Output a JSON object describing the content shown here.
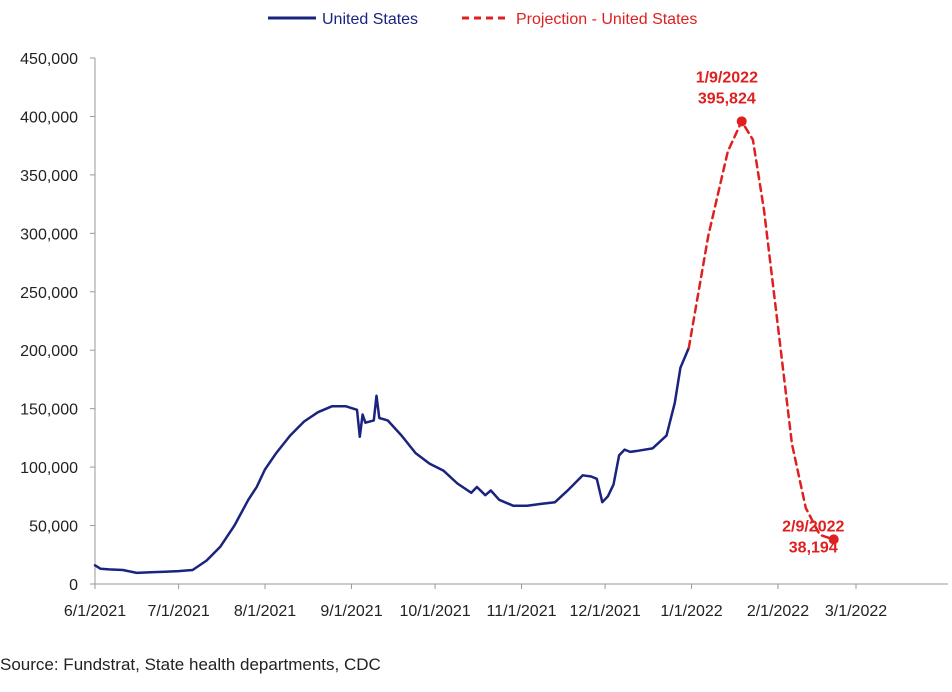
{
  "chart_data": {
    "type": "line",
    "title": "",
    "xlabel": "",
    "ylabel": "",
    "ylim": [
      0,
      450000
    ],
    "yticks": [
      "0",
      "50,000",
      "100,000",
      "150,000",
      "200,000",
      "250,000",
      "300,000",
      "350,000",
      "400,000",
      "450,000"
    ],
    "ytick_values": [
      0,
      50000,
      100000,
      150000,
      200000,
      250000,
      300000,
      350000,
      400000,
      450000
    ],
    "xticks": [
      "6/1/2021",
      "7/1/2021",
      "8/1/2021",
      "9/1/2021",
      "10/1/2021",
      "11/1/2021",
      "12/1/2021",
      "1/1/2022",
      "2/1/2022",
      "3/1/2022"
    ],
    "xtick_days": [
      0,
      30,
      61,
      92,
      122,
      153,
      183,
      214,
      245,
      273
    ],
    "x_unit": "days since 6/1/2021",
    "xlim": [
      0,
      306
    ],
    "legend": {
      "position": "top-center"
    },
    "colors": {
      "actual": "#1a237e",
      "projection": "#e02020",
      "axis": "#999999"
    },
    "series": [
      {
        "name": "United States",
        "style": "solid",
        "x": [
          0,
          2,
          5,
          10,
          15,
          20,
          25,
          30,
          35,
          40,
          45,
          50,
          55,
          58,
          61,
          65,
          70,
          75,
          80,
          85,
          90,
          94,
          95,
          96,
          97,
          100,
          101,
          102,
          105,
          110,
          115,
          120,
          125,
          130,
          135,
          137,
          140,
          142,
          145,
          150,
          155,
          160,
          165,
          170,
          175,
          178,
          180,
          182,
          184,
          186,
          188,
          190,
          192,
          195,
          200,
          205,
          208,
          210,
          213
        ],
        "y": [
          16000,
          13000,
          12500,
          12000,
          9500,
          10000,
          10500,
          11000,
          12000,
          20000,
          32000,
          50000,
          72000,
          83000,
          98000,
          112000,
          127000,
          139000,
          147000,
          152000,
          152000,
          149000,
          126000,
          145000,
          138000,
          140000,
          161000,
          142000,
          140000,
          127000,
          112000,
          103000,
          97000,
          86000,
          78000,
          83000,
          76000,
          80000,
          72000,
          67000,
          67000,
          68500,
          70000,
          81000,
          93000,
          92000,
          90000,
          70000,
          75000,
          85000,
          110000,
          115000,
          113000,
          114000,
          116000,
          127000,
          155000,
          185000,
          202000
        ]
      },
      {
        "name": "Projection - United States",
        "style": "dashed",
        "x": [
          213,
          220,
          227,
          232,
          236,
          240,
          245,
          250,
          255,
          260,
          265
        ],
        "y": [
          202000,
          298000,
          370000,
          395824,
          380000,
          320000,
          220000,
          120000,
          65000,
          42000,
          38194
        ]
      }
    ],
    "annotations": [
      {
        "label": "1/9/2022",
        "value_text": "395,824",
        "x": 222,
        "y": 395824
      },
      {
        "label": "2/9/2022",
        "value_text": "38,194",
        "x": 253,
        "y": 38194
      }
    ]
  },
  "source": "Source: Fundstrat, State health departments, CDC"
}
